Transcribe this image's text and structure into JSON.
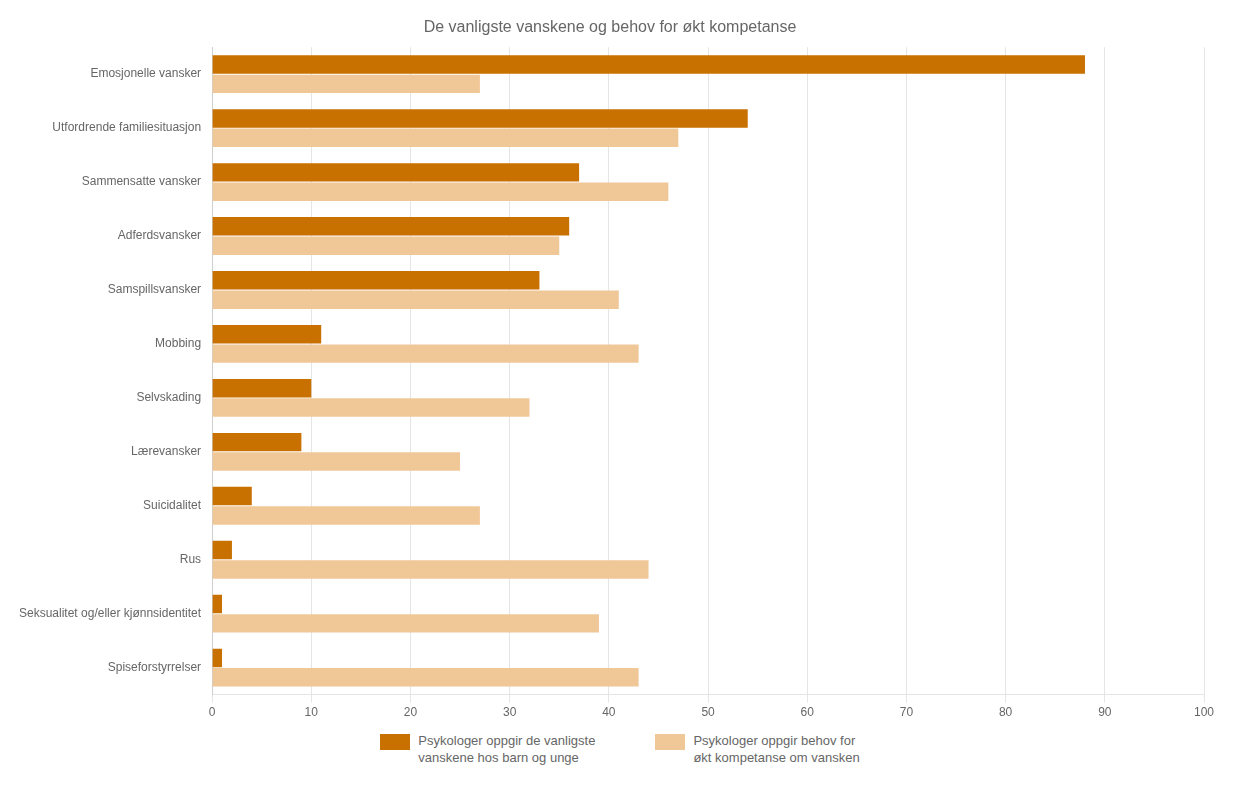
{
  "chart_data": {
    "type": "bar",
    "orientation": "horizontal",
    "title": "De vanligste vanskene og behov for økt kompetanse",
    "categories": [
      "Spiseforstyrrelser",
      "Seksualitet og/eller kjønnsidentitet",
      "Rus",
      "Suicidalitet",
      "Lærevansker",
      "Selvskading",
      "Mobbing",
      "Samspillsvansker",
      "Adferdsvansker",
      "Sammensatte vansker",
      "Utfordrende familiesituasjon",
      "Emosjonelle vansker"
    ],
    "series": [
      {
        "name": "Psykologer oppgir de vanligste\nvanskene hos barn og unge",
        "color": "#C87000",
        "values": [
          1,
          1,
          2,
          4,
          9,
          10,
          11,
          33,
          36,
          37,
          54,
          88
        ]
      },
      {
        "name": "Psykologer oppgir behov for\nøkt kompetanse om vansken",
        "color": "#F0C898",
        "values": [
          43,
          39,
          44,
          27,
          25,
          32,
          43,
          41,
          35,
          46,
          47,
          27
        ]
      }
    ],
    "xlim": [
      0,
      100
    ],
    "xticks": [
      0,
      10,
      20,
      30,
      40,
      50,
      60,
      70,
      80,
      90,
      100
    ],
    "grid": true,
    "legend": "bottom"
  }
}
